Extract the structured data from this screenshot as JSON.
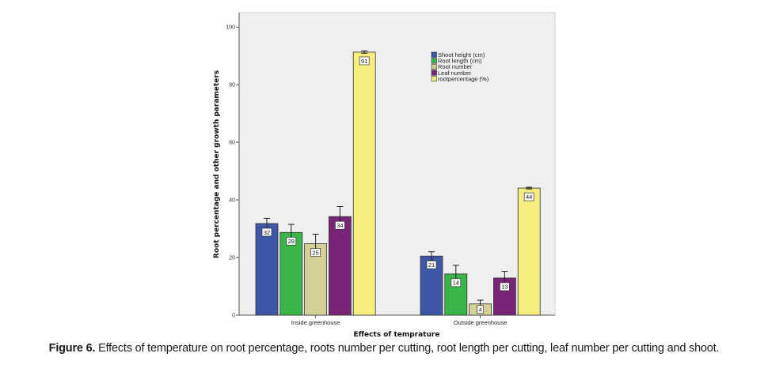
{
  "chart_data": {
    "type": "bar",
    "title": "",
    "xlabel": "Effects of temprature",
    "ylabel": "Root percentage and other growth parameters",
    "ylim": [
      0,
      105
    ],
    "yticks": [
      0,
      20,
      40,
      60,
      80,
      100
    ],
    "grid": false,
    "legend_position": "top-right",
    "categories": [
      "Inside greenhouse",
      "Outside greenhouse"
    ],
    "series": [
      {
        "name": "Shoot height (cm)",
        "color": "#3d57a6",
        "values": [
          31.8,
          20.5
        ],
        "labels": [
          "32",
          "21"
        ],
        "error": [
          1.8,
          1.5
        ]
      },
      {
        "name": "Root length (cm)",
        "color": "#3ab54a",
        "values": [
          28.7,
          14.3
        ],
        "labels": [
          "29",
          "14"
        ],
        "error": [
          2.8,
          3.0
        ]
      },
      {
        "name": "Root number",
        "color": "#d5d096",
        "values": [
          24.8,
          3.9
        ],
        "labels": [
          "25",
          "4"
        ],
        "error": [
          3.3,
          1.3
        ]
      },
      {
        "name": "Leaf number",
        "color": "#7a2478",
        "values": [
          34.2,
          12.9
        ],
        "labels": [
          "34",
          "13"
        ],
        "error": [
          3.5,
          2.3
        ]
      },
      {
        "name": "rootpercentage (%)",
        "color": "#f5ee7e",
        "values": [
          91.3,
          44.1
        ],
        "labels": [
          "91",
          "44"
        ],
        "error": [
          0.4,
          0.3
        ]
      }
    ]
  },
  "caption": {
    "label": "Figure 6.",
    "text": " Effects of temperature on root percentage, roots number per cutting, root length per cutting, leaf number per cutting and shoot."
  }
}
